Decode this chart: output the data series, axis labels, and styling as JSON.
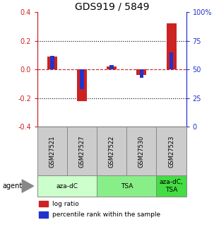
{
  "title": "GDS919 / 5849",
  "samples": [
    "GSM27521",
    "GSM27527",
    "GSM27522",
    "GSM27530",
    "GSM27523"
  ],
  "red_bars": [
    0.09,
    -0.22,
    0.02,
    -0.04,
    0.32
  ],
  "blue_bars_pct": [
    62,
    33,
    54,
    43,
    65
  ],
  "ylim": [
    -0.4,
    0.4
  ],
  "yticks_left": [
    -0.4,
    -0.2,
    0.0,
    0.2,
    0.4
  ],
  "yticks_right": [
    0,
    25,
    50,
    75,
    100
  ],
  "red_color": "#cc2222",
  "blue_color": "#2233cc",
  "bar_width": 0.55,
  "groups": [
    {
      "label": "aza-dC",
      "count": 2,
      "color": "#ccffcc"
    },
    {
      "label": "TSA",
      "count": 2,
      "color": "#88ee88"
    },
    {
      "label": "aza-dC,\nTSA",
      "count": 1,
      "color": "#44dd44"
    }
  ],
  "agent_label": "agent",
  "legend_red": "log ratio",
  "legend_blue": "percentile rank within the sample",
  "title_fontsize": 10,
  "tick_fontsize": 7,
  "label_fontsize": 7,
  "sample_fontsize": 6
}
